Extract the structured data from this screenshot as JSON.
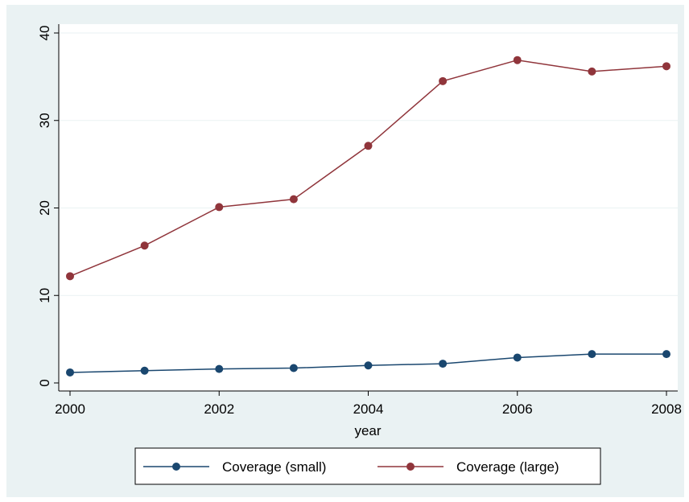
{
  "chart_data": {
    "type": "line",
    "title": "",
    "xlabel": "year",
    "ylabel": "",
    "x": [
      2000,
      2001,
      2002,
      2003,
      2004,
      2005,
      2006,
      2007,
      2008
    ],
    "xticks": [
      2000,
      2002,
      2004,
      2006,
      2008
    ],
    "yticks": [
      0,
      10,
      20,
      30,
      40
    ],
    "xlim": [
      2000,
      2008
    ],
    "ylim": [
      -1,
      41
    ],
    "grid": true,
    "legend_position": "bottom",
    "series": [
      {
        "name": "Coverage (small)",
        "color": "#1a476f",
        "values": [
          1.2,
          1.4,
          1.6,
          1.7,
          2.0,
          2.2,
          2.9,
          3.3,
          3.3
        ]
      },
      {
        "name": "Coverage (large)",
        "color": "#90353b",
        "values": [
          12.2,
          15.7,
          20.1,
          21.0,
          27.1,
          34.5,
          36.9,
          35.6,
          36.2
        ]
      }
    ]
  }
}
